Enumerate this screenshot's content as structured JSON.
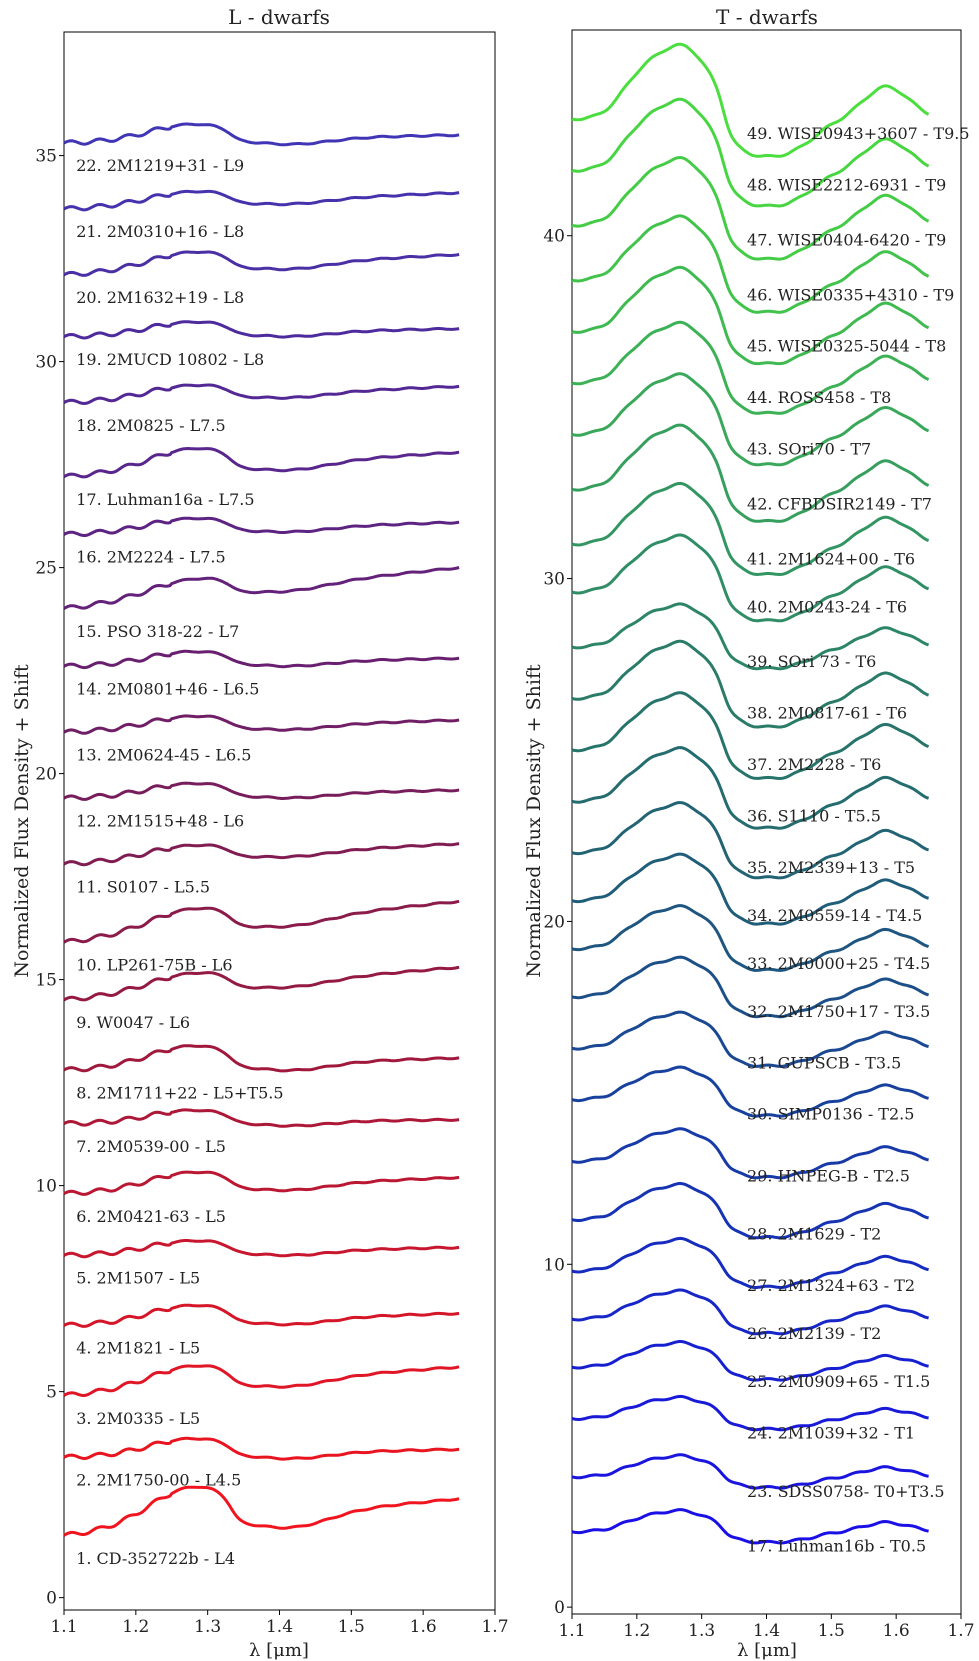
{
  "chart_data": [
    {
      "type": "line",
      "title": "L - dwarfs",
      "xlabel": "λ [μm]",
      "ylabel": "Normalized Flux Density + Shift",
      "xlim": [
        1.1,
        1.7
      ],
      "ylim": [
        -0.3,
        38.0
      ],
      "xticks": [
        "1.1",
        "1.2",
        "1.3",
        "1.4",
        "1.5",
        "1.6",
        "1.7"
      ],
      "xtick_values": [
        1.1,
        1.2,
        1.3,
        1.4,
        1.5,
        1.6,
        1.7
      ],
      "yticks": [
        "0",
        "5",
        "10",
        "15",
        "20",
        "25",
        "30",
        "35"
      ],
      "ytick_values": [
        0,
        5,
        10,
        15,
        20,
        25,
        30,
        35
      ],
      "grid": false,
      "profile": "L",
      "series": [
        {
          "name": "1. CD-352722b - L4",
          "offset": 1.5,
          "amp": 0.9,
          "tilt": 0.9,
          "color": "#f0141e"
        },
        {
          "name": "2. 2M1750-00 - L4.5",
          "offset": 3.4,
          "amp": 0.4,
          "tilt": 0.2,
          "color": "#e8141f"
        },
        {
          "name": "3. 2M0335 - L5",
          "offset": 4.9,
          "amp": 0.5,
          "tilt": 0.7,
          "color": "#e01525"
        },
        {
          "name": "4. 2M1821 - L5",
          "offset": 6.6,
          "amp": 0.4,
          "tilt": 0.3,
          "color": "#d51528"
        },
        {
          "name": "5. 2M1507 - L5",
          "offset": 8.3,
          "amp": 0.3,
          "tilt": 0.2,
          "color": "#c8162e"
        },
        {
          "name": "6. 2M0421-63 - L5",
          "offset": 9.8,
          "amp": 0.4,
          "tilt": 0.4,
          "color": "#ba1733"
        },
        {
          "name": "7. 2M0539-00 - L5",
          "offset": 11.5,
          "amp": 0.3,
          "tilt": 0.1,
          "color": "#ad1838"
        },
        {
          "name": "8. 2M1711+22 - L5+T5.5",
          "offset": 12.8,
          "amp": 0.5,
          "tilt": 0.3,
          "color": "#a0193d"
        },
        {
          "name": "9. W0047 - L6",
          "offset": 14.5,
          "amp": 0.4,
          "tilt": 0.8,
          "color": "#941a43"
        },
        {
          "name": "10. LP261-75B - L6",
          "offset": 15.9,
          "amp": 0.5,
          "tilt": 1.0,
          "color": "#8a1b4a"
        },
        {
          "name": "11. S0107 - L5.5",
          "offset": 17.8,
          "amp": 0.3,
          "tilt": 0.5,
          "color": "#811c52"
        },
        {
          "name": "12. 2M1515+48 - L6",
          "offset": 19.4,
          "amp": 0.3,
          "tilt": 0.2,
          "color": "#781d5c"
        },
        {
          "name": "13. 2M0624-45 - L6.5",
          "offset": 21.0,
          "amp": 0.3,
          "tilt": 0.3,
          "color": "#701e66"
        },
        {
          "name": "14. 2M0801+46 - L6.5",
          "offset": 22.6,
          "amp": 0.3,
          "tilt": 0.2,
          "color": "#691f70"
        },
        {
          "name": "15. PSO 318-22 - L7",
          "offset": 24.0,
          "amp": 0.4,
          "tilt": 1.0,
          "color": "#63217a"
        },
        {
          "name": "16. 2M2224 - L7.5",
          "offset": 25.8,
          "amp": 0.3,
          "tilt": 0.3,
          "color": "#5d2383"
        },
        {
          "name": "17. Luhman16a - L7.5",
          "offset": 27.2,
          "amp": 0.5,
          "tilt": 0.6,
          "color": "#58268c"
        },
        {
          "name": "18. 2M0825 - L7.5",
          "offset": 29.0,
          "amp": 0.3,
          "tilt": 0.4,
          "color": "#532894"
        },
        {
          "name": "19. 2MUCD 10802 - L8",
          "offset": 30.6,
          "amp": 0.3,
          "tilt": 0.2,
          "color": "#4e2b9c"
        },
        {
          "name": "20. 2M1632+19 - L8",
          "offset": 32.1,
          "amp": 0.4,
          "tilt": 0.5,
          "color": "#4a2fa5"
        },
        {
          "name": "21. 2M0310+16 - L8",
          "offset": 33.7,
          "amp": 0.3,
          "tilt": 0.4,
          "color": "#4532ad"
        },
        {
          "name": "22. 2M1219+31 - L9",
          "offset": 35.3,
          "amp": 0.4,
          "tilt": 0.2,
          "color": "#4035b5"
        }
      ]
    },
    {
      "type": "line",
      "title": "T - dwarfs",
      "xlabel": "λ [μm]",
      "ylabel": "Normalized Flux Density + Shift",
      "xlim": [
        1.1,
        1.7
      ],
      "ylim": [
        -0.2,
        46.0
      ],
      "xticks": [
        "1.1",
        "1.2",
        "1.3",
        "1.4",
        "1.5",
        "1.6",
        "1.7"
      ],
      "xtick_values": [
        1.1,
        1.2,
        1.3,
        1.4,
        1.5,
        1.6,
        1.7
      ],
      "yticks": [
        "0",
        "10",
        "20",
        "30",
        "40"
      ],
      "ytick_values": [
        0,
        10,
        20,
        30,
        40
      ],
      "grid": false,
      "profile": "T",
      "series": [
        {
          "name": "17. Luhman16b - T0.5",
          "offset": 2.2,
          "amp": 0.6,
          "color": "#1a10e6"
        },
        {
          "name": "23. SDSS0758- T0+T3.5",
          "offset": 3.8,
          "amp": 0.6,
          "color": "#1915df"
        },
        {
          "name": "24. 2M1039+32 - T1",
          "offset": 5.5,
          "amp": 0.6,
          "color": "#181ad8"
        },
        {
          "name": "25. 2M0909+65 - T1.5",
          "offset": 7.0,
          "amp": 0.7,
          "color": "#1720d0"
        },
        {
          "name": "26. 2M2139 - T2",
          "offset": 8.4,
          "amp": 0.8,
          "color": "#1626c7"
        },
        {
          "name": "27. 2M1324+63 - T2",
          "offset": 9.8,
          "amp": 0.9,
          "color": "#162cbe"
        },
        {
          "name": "28. 2M1629 - T2",
          "offset": 11.3,
          "amp": 1.0,
          "color": "#1633b3"
        },
        {
          "name": "29. HNPEG-B - T2.5",
          "offset": 13.0,
          "amp": 0.9,
          "color": "#173aa8"
        },
        {
          "name": "30. SIMP0136 - T2.5",
          "offset": 14.8,
          "amp": 0.9,
          "color": "#18419d"
        },
        {
          "name": "31. GUPSCB - T3.5",
          "offset": 16.3,
          "amp": 1.0,
          "color": "#1a4892"
        },
        {
          "name": "32. 2M1750+17 - T3.5",
          "offset": 17.8,
          "amp": 1.1,
          "color": "#1c4f88"
        },
        {
          "name": "33. 2M0000+25 - T4.5",
          "offset": 19.2,
          "amp": 1.2,
          "color": "#1e5680"
        },
        {
          "name": "34. 2M0559-14 - T4.5",
          "offset": 20.6,
          "amp": 1.3,
          "color": "#205d79"
        },
        {
          "name": "35. 2M2339+13 - T5",
          "offset": 22.0,
          "amp": 1.4,
          "color": "#226473"
        },
        {
          "name": "36. S1110 - T5.5",
          "offset": 23.5,
          "amp": 1.5,
          "color": "#246c6e"
        },
        {
          "name": "37. 2M2228 - T6",
          "offset": 25.0,
          "amp": 1.6,
          "color": "#27746b"
        },
        {
          "name": "38. 2M0817-61 - T6",
          "offset": 26.5,
          "amp": 1.6,
          "color": "#2a7c69"
        },
        {
          "name": "39. SOri 73 - T6",
          "offset": 28.0,
          "amp": 1.2,
          "color": "#2d8567"
        },
        {
          "name": "40. 2M0243-24 - T6",
          "offset": 29.6,
          "amp": 1.6,
          "color": "#308d65"
        },
        {
          "name": "41. 2M1624+00 - T6",
          "offset": 31.0,
          "amp": 1.7,
          "color": "#339662"
        },
        {
          "name": "42. CFBDSIR2149 - T7",
          "offset": 32.6,
          "amp": 1.8,
          "color": "#369f5e"
        },
        {
          "name": "43. SOri70 - T7",
          "offset": 34.2,
          "amp": 1.7,
          "color": "#39a85a"
        },
        {
          "name": "44. ROSS458 - T8",
          "offset": 35.7,
          "amp": 1.7,
          "color": "#3cb155"
        },
        {
          "name": "45. WISE0325-5044 - T8",
          "offset": 37.2,
          "amp": 1.8,
          "color": "#3fba50"
        },
        {
          "name": "46. WISE0335+4310 - T9",
          "offset": 38.7,
          "amp": 1.8,
          "color": "#42c34b"
        },
        {
          "name": "47. WISE0404-6420 - T9",
          "offset": 40.3,
          "amp": 1.9,
          "color": "#45cc46"
        },
        {
          "name": "48. WISE2212-6931 - T9",
          "offset": 41.9,
          "amp": 2.0,
          "color": "#48d542"
        },
        {
          "name": "49. WISE0943+3607 - T9.5",
          "offset": 43.4,
          "amp": 2.1,
          "color": "#4ade3e"
        }
      ]
    }
  ]
}
